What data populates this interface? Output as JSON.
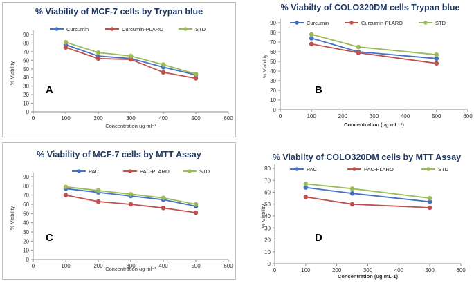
{
  "colors": {
    "curcumin": "#4472c4",
    "plaro": "#c0504d",
    "std": "#9bbb59"
  },
  "chart_data": [
    {
      "type": "line",
      "title": "% Viability of MCF-7 cells by Trypan blue",
      "xlabel": "Concentration ug ml⁻¹",
      "ylabel": "% Viability",
      "panel": "A",
      "xlim": [
        0,
        600
      ],
      "ylim": [
        0,
        90
      ],
      "xticks": [
        0,
        100,
        200,
        300,
        400,
        500,
        600
      ],
      "yticks": [
        0,
        10,
        20,
        30,
        40,
        50,
        60,
        70,
        80,
        90
      ],
      "x": [
        100,
        200,
        300,
        400,
        500
      ],
      "series": [
        {
          "name": "Curcumin",
          "color": "#4472c4",
          "values": [
            78,
            65,
            62,
            52,
            43
          ]
        },
        {
          "name": "Curcumin-PLARO",
          "color": "#c0504d",
          "values": [
            75,
            62,
            61,
            46,
            39
          ]
        },
        {
          "name": "STD",
          "color": "#9bbb59",
          "values": [
            81,
            69,
            65,
            55,
            44
          ]
        }
      ]
    },
    {
      "type": "line",
      "title": "% Viabilty of COLO320DM cells Trypan blue",
      "xlabel": "Concentration (ug mL⁻¹)",
      "ylabel": "% Viability",
      "panel": "B",
      "xlim": [
        0,
        600
      ],
      "ylim": [
        0,
        90
      ],
      "xticks": [
        0,
        100,
        200,
        300,
        400,
        500,
        600
      ],
      "yticks": [
        0,
        10,
        20,
        30,
        40,
        50,
        60,
        70,
        80,
        90
      ],
      "x": [
        100,
        250,
        500
      ],
      "series": [
        {
          "name": "Curcumin",
          "color": "#4472c4",
          "values": [
            74,
            60,
            53
          ]
        },
        {
          "name": "Curcumin-PLARO",
          "color": "#c0504d",
          "values": [
            68,
            59,
            48
          ]
        },
        {
          "name": "STD",
          "color": "#9bbb59",
          "values": [
            78,
            65,
            57
          ]
        }
      ]
    },
    {
      "type": "line",
      "title": "% Viability of MCF-7 cells by MTT Assay",
      "xlabel": "Concentration ug ml⁻¹",
      "ylabel": "% Viability",
      "panel": "C",
      "xlim": [
        0,
        600
      ],
      "ylim": [
        0,
        90
      ],
      "xticks": [
        0,
        100,
        200,
        300,
        400,
        500,
        600
      ],
      "yticks": [
        0,
        10,
        20,
        30,
        40,
        50,
        60,
        70,
        80,
        90
      ],
      "x": [
        100,
        200,
        300,
        400,
        500
      ],
      "series": [
        {
          "name": "PAC",
          "color": "#4472c4",
          "values": [
            77,
            73,
            69,
            65,
            58
          ]
        },
        {
          "name": "PAC-PLARO",
          "color": "#c0504d",
          "values": [
            70,
            63,
            60,
            56,
            51
          ]
        },
        {
          "name": "STD",
          "color": "#9bbb59",
          "values": [
            79,
            75,
            71,
            67,
            60
          ]
        }
      ]
    },
    {
      "type": "line",
      "title": "% Viabilty of COLO320DM cells by MTT Assay",
      "xlabel": "Concentration (ug mL-1)",
      "ylabel": "% Viability",
      "panel": "D",
      "xlim": [
        0,
        600
      ],
      "ylim": [
        0,
        80
      ],
      "xticks": [
        0,
        100,
        200,
        300,
        400,
        500,
        600
      ],
      "yticks": [
        0,
        10,
        20,
        30,
        40,
        50,
        60,
        70,
        80
      ],
      "x": [
        100,
        250,
        500
      ],
      "series": [
        {
          "name": "PAC",
          "color": "#4472c4",
          "values": [
            64,
            59,
            52
          ]
        },
        {
          "name": "PAC-PLARO",
          "color": "#c0504d",
          "values": [
            56,
            50,
            47
          ]
        },
        {
          "name": "STD",
          "color": "#9bbb59",
          "values": [
            67,
            63,
            55
          ]
        }
      ]
    }
  ]
}
